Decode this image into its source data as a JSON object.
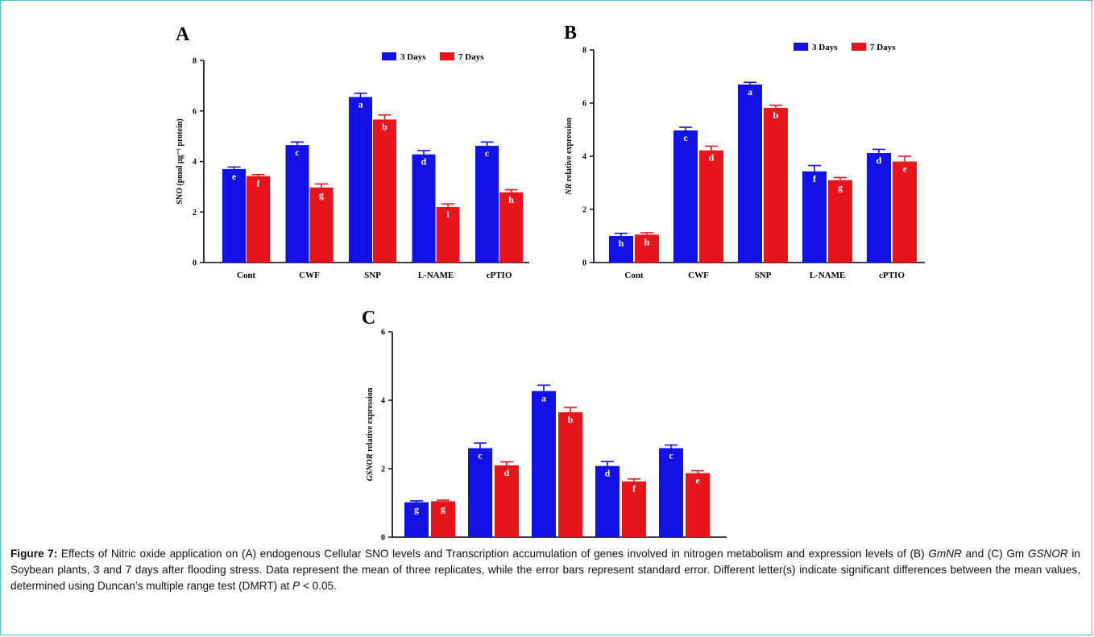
{
  "colors": {
    "series_3days": "#1212e6",
    "series_7days": "#e8141b",
    "frame": "#4cc2b8"
  },
  "chart_data": [
    {
      "panel": "A",
      "type": "bar",
      "categories": [
        "Cont",
        "CWF",
        "SNP",
        "L-NAME",
        "cPTIO"
      ],
      "ylabel": "SNO (pmol µg⁻¹ protein)",
      "ylim": [
        0,
        8
      ],
      "yticks": [
        0,
        2,
        4,
        6,
        8
      ],
      "legend_position": "top-right",
      "series": [
        {
          "name": "3 Days",
          "values": [
            3.7,
            4.65,
            6.55,
            4.28,
            4.62
          ],
          "errors": [
            0.08,
            0.12,
            0.15,
            0.15,
            0.15
          ],
          "letters": [
            "e",
            "c",
            "a",
            "d",
            "c"
          ]
        },
        {
          "name": "7 Days",
          "values": [
            3.42,
            2.97,
            5.66,
            2.2,
            2.78
          ],
          "errors": [
            0.06,
            0.14,
            0.18,
            0.12,
            0.1
          ],
          "letters": [
            "f",
            "g",
            "b",
            "i",
            "h"
          ]
        }
      ]
    },
    {
      "panel": "B",
      "type": "bar",
      "categories": [
        "Cont",
        "CWF",
        "SNP",
        "L-NAME",
        "cPTIO"
      ],
      "ylabel_italic": "NR",
      "ylabel": " relative expression",
      "ylim": [
        0,
        8
      ],
      "yticks": [
        0,
        2,
        4,
        6,
        8
      ],
      "legend_position": "top-right",
      "series": [
        {
          "name": "3 Days",
          "values": [
            1.0,
            4.97,
            6.7,
            3.43,
            4.12
          ],
          "errors": [
            0.1,
            0.12,
            0.08,
            0.22,
            0.14
          ],
          "letters": [
            "h",
            "c",
            "a",
            "f",
            "d"
          ]
        },
        {
          "name": "7 Days",
          "values": [
            1.05,
            4.22,
            5.82,
            3.1,
            3.8
          ],
          "errors": [
            0.07,
            0.16,
            0.1,
            0.1,
            0.2
          ],
          "letters": [
            "h",
            "d",
            "b",
            "g",
            "e"
          ]
        }
      ]
    },
    {
      "panel": "C",
      "type": "bar",
      "categories": [
        "",
        "",
        "",
        "",
        ""
      ],
      "ylabel_italic": "GSNOR",
      "ylabel": " relative expression",
      "ylim": [
        0,
        6
      ],
      "yticks": [
        0,
        2,
        4,
        6
      ],
      "series": [
        {
          "name": "3 Days",
          "values": [
            1.02,
            2.6,
            4.27,
            2.08,
            2.6
          ],
          "errors": [
            0.04,
            0.15,
            0.17,
            0.13,
            0.09
          ],
          "letters": [
            "g",
            "c",
            "a",
            "d",
            "c"
          ]
        },
        {
          "name": "7 Days",
          "values": [
            1.05,
            2.1,
            3.65,
            1.63,
            1.87
          ],
          "errors": [
            0.03,
            0.1,
            0.14,
            0.07,
            0.07
          ],
          "letters": [
            "g",
            "d",
            "b",
            "f",
            "e"
          ]
        }
      ]
    }
  ],
  "caption": {
    "label": "Figure 7:",
    "seg1": " Effects of Nitric oxide application on (A) endogenous Cellular SNO levels and Transcription accumulation of genes involved in nitrogen metabolism and expression levels of (B) ",
    "gene1": "GmNR",
    "seg2": " and (C) Gm ",
    "gene2": "GSNOR",
    "seg3": " in Soybean plants, 3 and 7 days after flooding stress. Data represent the mean of three replicates, while the error bars represent standard error. Different letter(s) indicate significant differences between the mean values, determined using Duncan’s multiple range test (DMRT) at ",
    "p": "P",
    "seg4": " < 0.05."
  }
}
